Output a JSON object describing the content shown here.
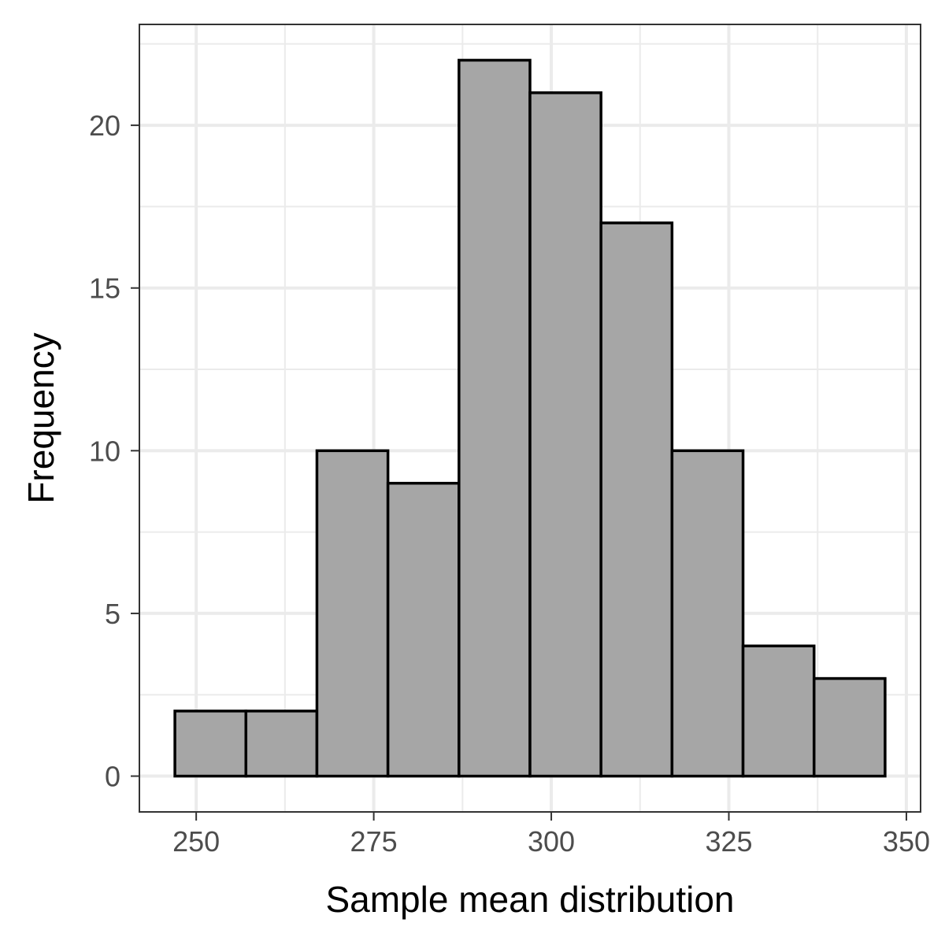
{
  "chart_data": {
    "type": "bar",
    "subtype": "histogram",
    "title": "",
    "xlabel": "Sample mean distribution",
    "ylabel": "Frequency",
    "bins": [
      {
        "x0": 247,
        "x1": 257,
        "count": 2
      },
      {
        "x0": 257,
        "x1": 267,
        "count": 2
      },
      {
        "x0": 267,
        "x1": 277,
        "count": 10
      },
      {
        "x0": 277,
        "x1": 287,
        "count": 9
      },
      {
        "x0": 287,
        "x1": 297,
        "count": 22
      },
      {
        "x0": 297,
        "x1": 307,
        "count": 21
      },
      {
        "x0": 307,
        "x1": 317,
        "count": 17
      },
      {
        "x0": 317,
        "x1": 327,
        "count": 10
      },
      {
        "x0": 327,
        "x1": 337,
        "count": 4
      },
      {
        "x0": 337,
        "x1": 347,
        "count": 3
      }
    ],
    "xlim": [
      242,
      352
    ],
    "ylim": [
      -1.1,
      23.1
    ],
    "x_ticks": [
      250,
      275,
      300,
      325,
      350
    ],
    "x_minor_ticks": [
      262.5,
      287.5,
      312.5,
      337.5
    ],
    "y_ticks": [
      0,
      5,
      10,
      15,
      20
    ],
    "y_minor_ticks": [
      2.5,
      7.5,
      12.5,
      17.5,
      22.5
    ],
    "grid": true,
    "legend": "none",
    "colors": {
      "bar_fill": "#a6a6a6",
      "bar_stroke": "#000000",
      "grid": "#ebebeb",
      "panel_border": "#333333",
      "tick_label": "#4d4d4d"
    }
  }
}
